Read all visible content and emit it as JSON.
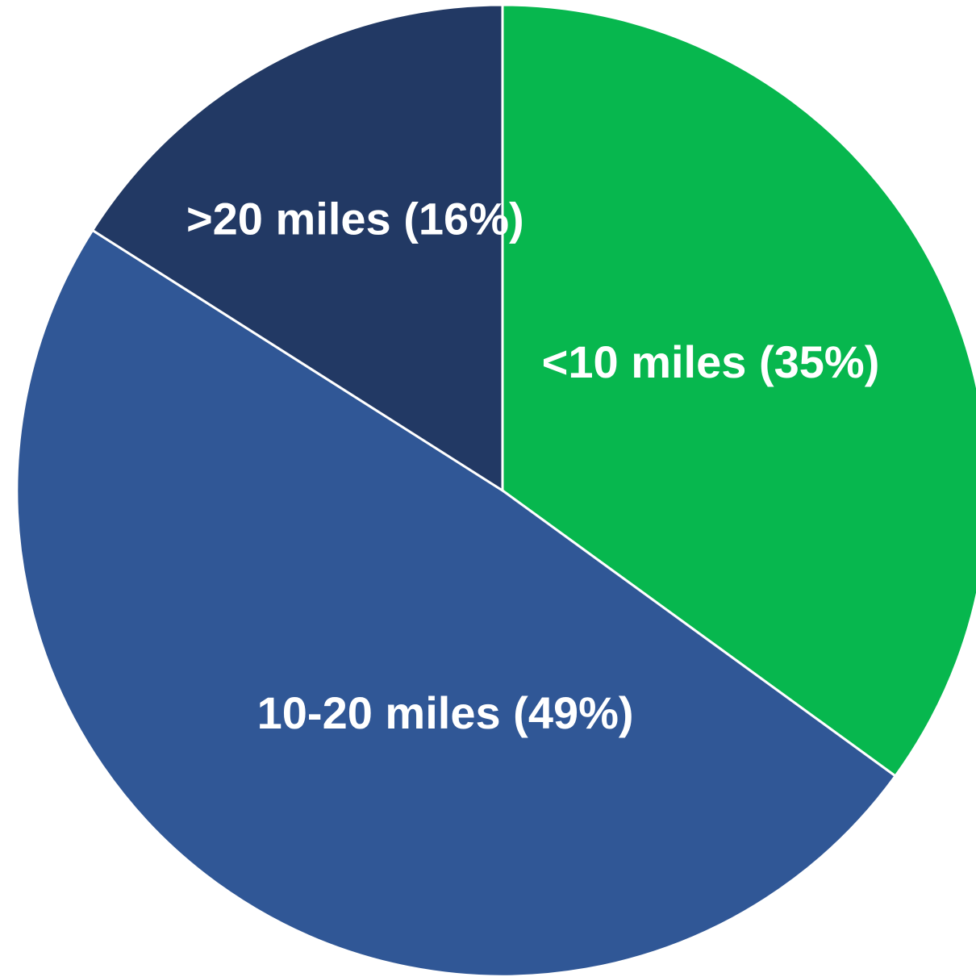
{
  "chart_data": {
    "type": "pie",
    "start_angle_deg": 0,
    "direction": "clockwise",
    "slices": [
      {
        "label": "<10 miles (35%)",
        "value": 35,
        "color": "#07B74E"
      },
      {
        "label": "10-20 miles (49%)",
        "value": 49,
        "color": "#305796"
      },
      {
        "label": ">20 miles (16%)",
        "value": 16,
        "color": "#223964"
      }
    ],
    "legend": "none"
  }
}
